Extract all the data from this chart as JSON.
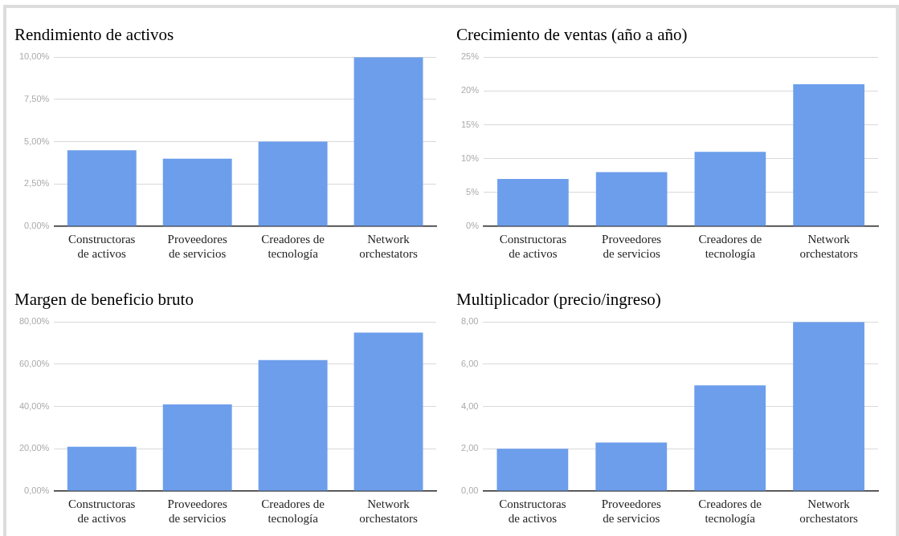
{
  "chart_data": [
    {
      "type": "bar",
      "title": "Rendimiento de activos",
      "categories": [
        "Constructoras de activos",
        "Proveedores de servicios",
        "Creadores de tecnología",
        "Network orchestators"
      ],
      "values": [
        4.5,
        4.0,
        5.0,
        10.0
      ],
      "color": "#6d9eeb",
      "ylim": [
        0,
        10
      ],
      "yticks": [
        {
          "value": 0,
          "label": "0,00%"
        },
        {
          "value": 2.5,
          "label": "2,50%"
        },
        {
          "value": 5,
          "label": "5,00%"
        },
        {
          "value": 7.5,
          "label": "7,50%"
        },
        {
          "value": 10,
          "label": "10,00%"
        }
      ],
      "grid": "y"
    },
    {
      "type": "bar",
      "title": "Crecimiento de ventas (año a año)",
      "categories": [
        "Constructoras de activos",
        "Proveedores de servicios",
        "Creadores de tecnología",
        "Network orchestators"
      ],
      "values": [
        7,
        8,
        11,
        21
      ],
      "color": "#6d9eeb",
      "ylim": [
        0,
        25
      ],
      "yticks": [
        {
          "value": 0,
          "label": "0%"
        },
        {
          "value": 5,
          "label": "5%"
        },
        {
          "value": 10,
          "label": "10%"
        },
        {
          "value": 15,
          "label": "15%"
        },
        {
          "value": 20,
          "label": "20%"
        },
        {
          "value": 25,
          "label": "25%"
        }
      ],
      "grid": "y"
    },
    {
      "type": "bar",
      "title": "Margen de beneficio bruto",
      "categories": [
        "Constructoras de activos",
        "Proveedores de servicios",
        "Creadores de tecnología",
        "Network orchestators"
      ],
      "values": [
        21,
        41,
        62,
        75
      ],
      "color": "#6d9eeb",
      "ylim": [
        0,
        80
      ],
      "yticks": [
        {
          "value": 0,
          "label": "0,00%"
        },
        {
          "value": 20,
          "label": "20,00%"
        },
        {
          "value": 40,
          "label": "40,00%"
        },
        {
          "value": 60,
          "label": "60,00%"
        },
        {
          "value": 80,
          "label": "80,00%"
        }
      ],
      "grid": "y"
    },
    {
      "type": "bar",
      "title": "Multiplicador (precio/ingreso)",
      "categories": [
        "Constructoras de activos",
        "Proveedores de servicios",
        "Creadores de tecnología",
        "Network orchestators"
      ],
      "values": [
        2.0,
        2.3,
        5.0,
        8.0
      ],
      "color": "#6d9eeb",
      "ylim": [
        0,
        8
      ],
      "yticks": [
        {
          "value": 0,
          "label": "0,00"
        },
        {
          "value": 2,
          "label": "2,00"
        },
        {
          "value": 4,
          "label": "4,00"
        },
        {
          "value": 6,
          "label": "6,00"
        },
        {
          "value": 8,
          "label": "8,00"
        }
      ],
      "grid": "y"
    }
  ]
}
